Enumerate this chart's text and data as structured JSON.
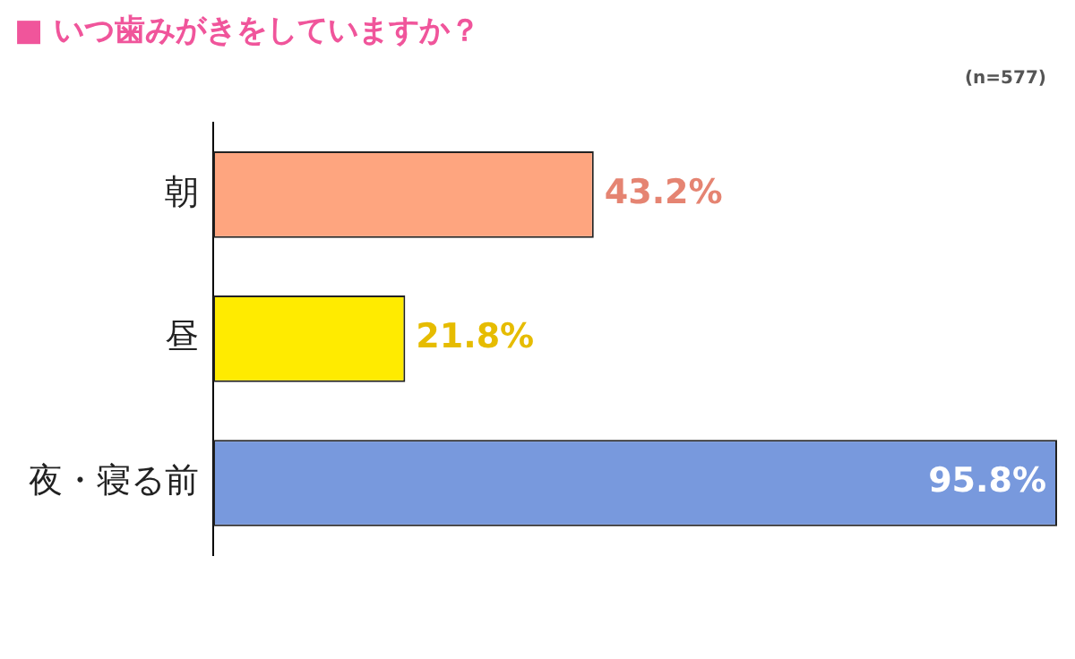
{
  "chart_data": {
    "type": "bar",
    "orientation": "horizontal",
    "title": "■ いつ歯みがきをしていますか？",
    "annotations": [
      "(n=577)"
    ],
    "categories": [
      "朝",
      "昼",
      "夜・寝る前"
    ],
    "values": [
      43.2,
      21.8,
      95.8
    ],
    "colors": [
      "#fea57f",
      "#ffeb00",
      "#7899dd"
    ],
    "value_labels": [
      "43.2%",
      "21.8%",
      "95.8%"
    ],
    "xlim": [
      0,
      95.8
    ],
    "tick_labels": "y",
    "grid": false,
    "legend": false
  }
}
